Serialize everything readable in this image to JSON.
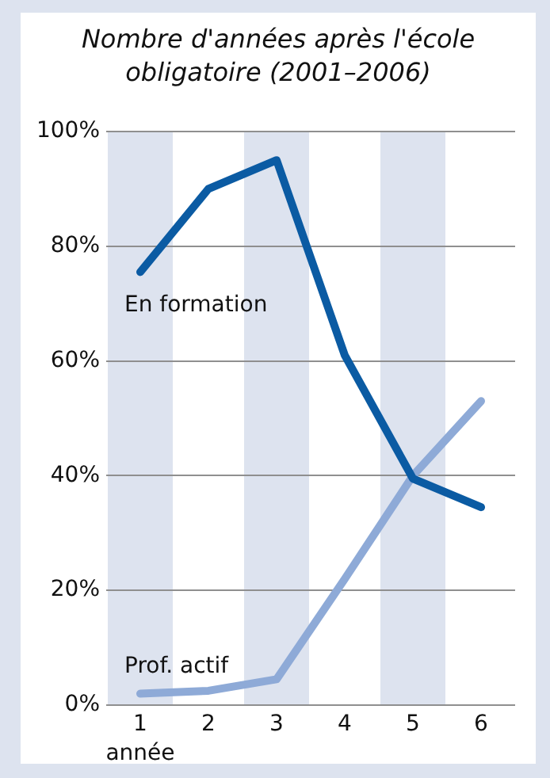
{
  "chart_data": {
    "type": "line",
    "title": "Nombre d'années après l'école obligatoire (2001–2006)",
    "xlabel": "année",
    "categories": [
      "1",
      "2",
      "3",
      "4",
      "5",
      "6"
    ],
    "series": [
      {
        "name": "En formation",
        "color": "#0b5ba3",
        "values": [
          75.5,
          90,
          95,
          61,
          39.5,
          34.5
        ]
      },
      {
        "name": "Prof. actif",
        "color": "#8eaad7",
        "values": [
          2,
          2.5,
          4.5,
          22,
          40,
          53
        ]
      }
    ],
    "ylim": [
      0,
      100
    ],
    "yticks": [
      {
        "value": 0,
        "label": "0%"
      },
      {
        "value": 20,
        "label": "20%"
      },
      {
        "value": 40,
        "label": "40%"
      },
      {
        "value": 60,
        "label": "60%"
      },
      {
        "value": 80,
        "label": "80%"
      },
      {
        "value": 100,
        "label": "100%"
      }
    ],
    "grid": "y",
    "legend": false,
    "marker": "none",
    "line_style": "solid"
  }
}
